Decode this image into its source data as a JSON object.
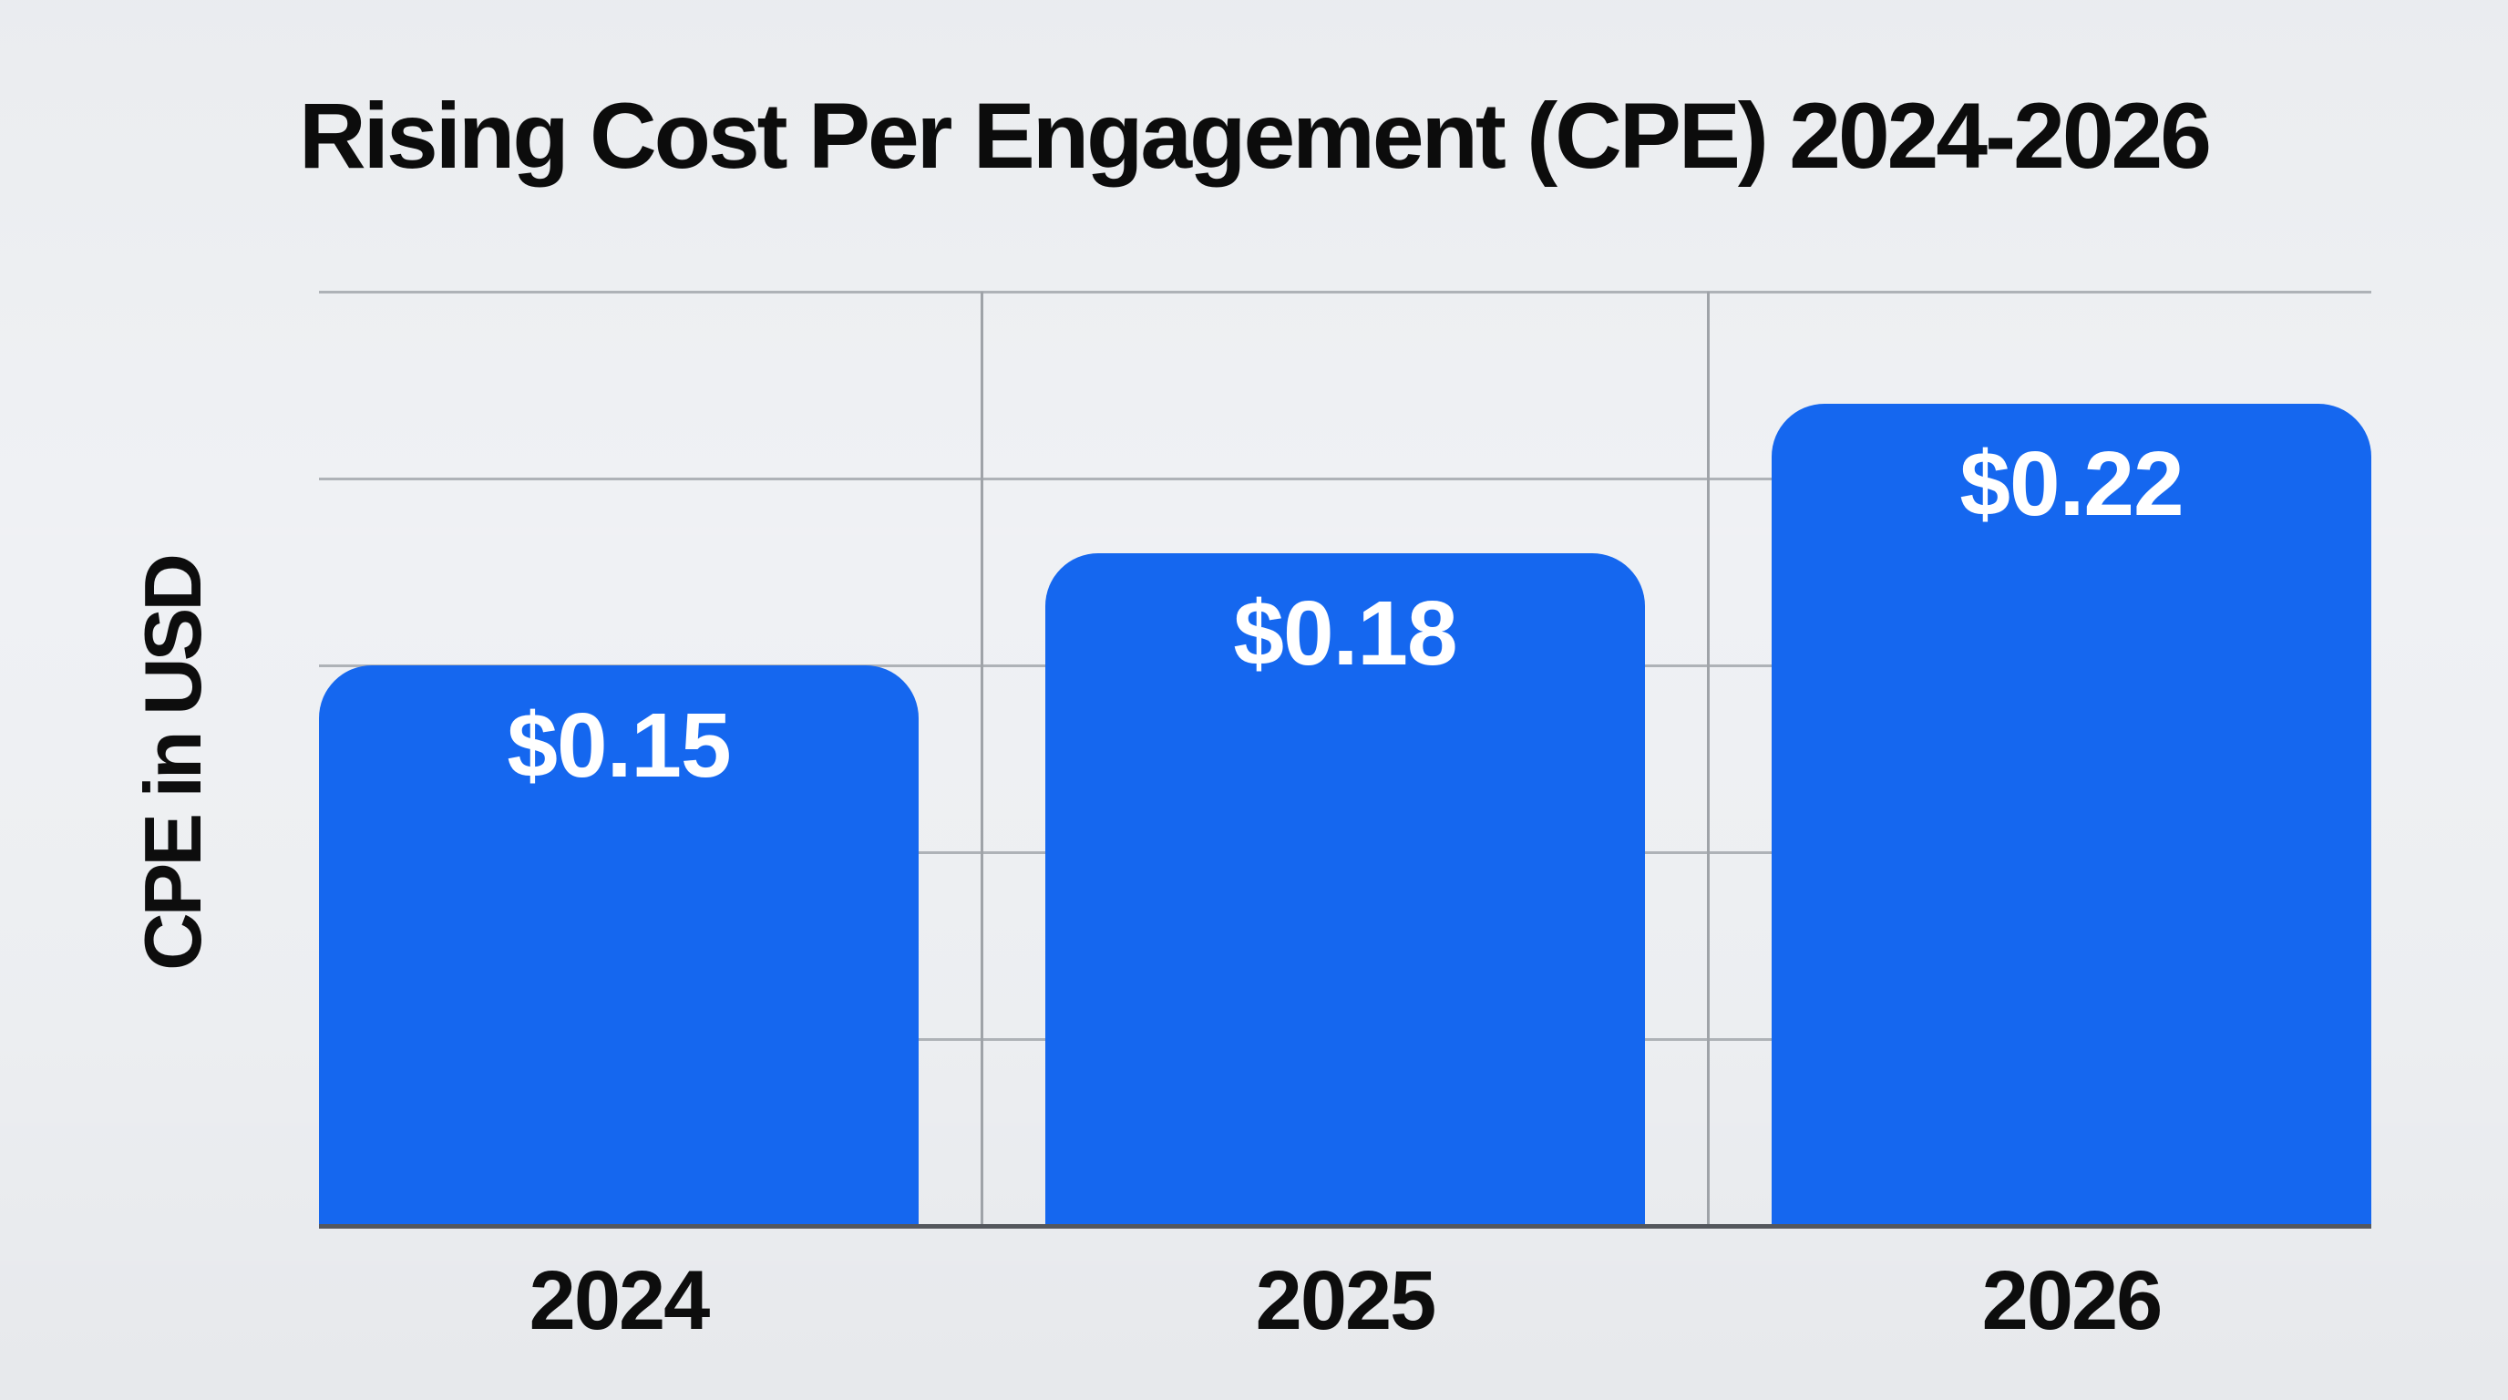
{
  "chart_data": {
    "type": "bar",
    "title": "Rising Cost Per Engagement (CPE) 2024-2026",
    "ylabel": "CPE in USD",
    "xlabel": "",
    "categories": [
      "2024",
      "2025",
      "2026"
    ],
    "values": [
      0.15,
      0.18,
      0.22
    ],
    "value_labels": [
      "$0.15",
      "$0.18",
      "$0.22"
    ],
    "ylim": [
      0,
      0.25
    ],
    "gridline_step": 0.05,
    "grid": "on",
    "legend": "none",
    "layout_hints": {
      "value_labels_position": "inside-top",
      "y_tick_numbers": "hidden",
      "vertical_gridlines": "between-bars"
    },
    "colors": {
      "bar": "#1567ef",
      "value_label": "#ffffff",
      "title": "#0c0c0c",
      "axis_label": "#0d0d0d",
      "tick_label": "#0d0d0d",
      "gridline": "#aeb2b7",
      "vertical_gridline": "#9fa3a8",
      "baseline": "#54575d",
      "background": "#eff1f4"
    }
  }
}
